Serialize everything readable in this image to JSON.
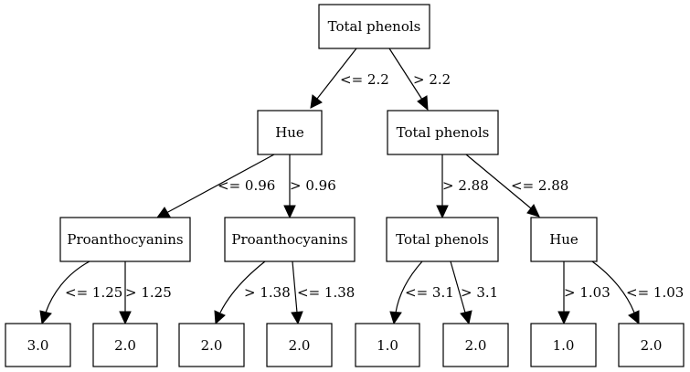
{
  "nodes": {
    "root": "Total phenols",
    "n_hue": "Hue",
    "n_tp": "Total phenols",
    "n_pro1": "Proanthocyanins",
    "n_pro2": "Proanthocyanins",
    "n_tp2": "Total phenols",
    "n_hue2": "Hue",
    "l1": "3.0",
    "l2": "2.0",
    "l3": "2.0",
    "l4": "2.0",
    "l5": "1.0",
    "l6": "2.0",
    "l7": "1.0",
    "l8": "2.0"
  },
  "edges": {
    "e_root_hue": "<= 2.2",
    "e_root_tp": "> 2.2",
    "e_hue_pro1": "<= 0.96",
    "e_hue_pro2": "> 0.96",
    "e_tp_tp2": "> 2.88",
    "e_tp_hue2": "<= 2.88",
    "e_pro1_l1": "<= 1.25",
    "e_pro1_l2": "> 1.25",
    "e_pro2_l3": "> 1.38",
    "e_pro2_l4": "<= 1.38",
    "e_tp2_l5": "<= 3.1",
    "e_tp2_l6": "> 3.1",
    "e_hue2_l7": "> 1.03",
    "e_hue2_l8": "<= 1.03"
  }
}
